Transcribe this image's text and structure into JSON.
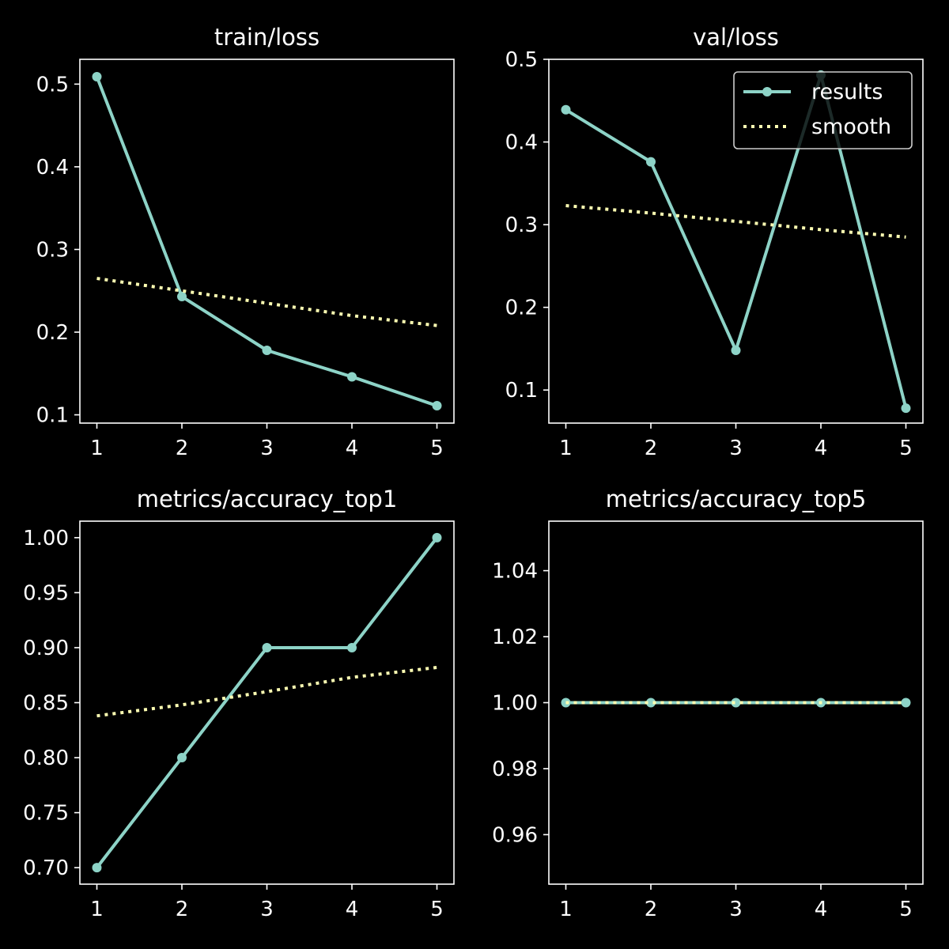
{
  "colors": {
    "background": "#000000",
    "axes": "#ffffff",
    "results": "#8dd3c7",
    "smooth": "#ffffb3",
    "legend_edge": "#cccccc"
  },
  "chart_data": [
    {
      "type": "line",
      "title": "train/loss",
      "x": [
        1,
        2,
        3,
        4,
        5
      ],
      "xlim": [
        0.8,
        5.2
      ],
      "ylim": [
        0.09,
        0.53
      ],
      "xticks": [
        1,
        2,
        3,
        4,
        5
      ],
      "yticks": [
        "0.1",
        "0.2",
        "0.3",
        "0.4",
        "0.5"
      ],
      "grid": false,
      "legend": null,
      "series": [
        {
          "key": "results",
          "style": "solid-marker",
          "values": [
            0.509,
            0.243,
            0.178,
            0.146,
            0.111
          ]
        },
        {
          "key": "smooth",
          "style": "dotted",
          "values": [
            0.265,
            0.25,
            0.235,
            0.22,
            0.208
          ]
        }
      ]
    },
    {
      "type": "line",
      "title": "val/loss",
      "x": [
        1,
        2,
        3,
        4,
        5
      ],
      "xlim": [
        0.8,
        5.2
      ],
      "ylim": [
        0.06,
        0.5
      ],
      "xticks": [
        1,
        2,
        3,
        4,
        5
      ],
      "yticks": [
        "0.1",
        "0.2",
        "0.3",
        "0.4",
        "0.5"
      ],
      "grid": false,
      "legend": "top-right",
      "series": [
        {
          "key": "results",
          "name": "results",
          "style": "solid-marker",
          "values": [
            0.439,
            0.376,
            0.148,
            0.481,
            0.078
          ]
        },
        {
          "key": "smooth",
          "name": "smooth",
          "style": "dotted",
          "values": [
            0.323,
            0.314,
            0.304,
            0.294,
            0.285
          ]
        }
      ]
    },
    {
      "type": "line",
      "title": "metrics/accuracy_top1",
      "x": [
        1,
        2,
        3,
        4,
        5
      ],
      "xlim": [
        0.8,
        5.2
      ],
      "ylim": [
        0.685,
        1.015
      ],
      "xticks": [
        1,
        2,
        3,
        4,
        5
      ],
      "yticks": [
        "0.70",
        "0.75",
        "0.80",
        "0.85",
        "0.90",
        "0.95",
        "1.00"
      ],
      "grid": false,
      "legend": null,
      "series": [
        {
          "key": "results",
          "style": "solid-marker",
          "values": [
            0.7,
            0.8,
            0.9,
            0.9,
            1.0
          ]
        },
        {
          "key": "smooth",
          "style": "dotted",
          "values": [
            0.838,
            0.848,
            0.86,
            0.873,
            0.882
          ]
        }
      ]
    },
    {
      "type": "line",
      "title": "metrics/accuracy_top5",
      "x": [
        1,
        2,
        3,
        4,
        5
      ],
      "xlim": [
        0.8,
        5.2
      ],
      "ylim": [
        0.945,
        1.055
      ],
      "xticks": [
        1,
        2,
        3,
        4,
        5
      ],
      "yticks": [
        "0.96",
        "0.98",
        "1.00",
        "1.02",
        "1.04"
      ],
      "grid": false,
      "legend": null,
      "series": [
        {
          "key": "results",
          "style": "solid-marker",
          "values": [
            1.0,
            1.0,
            1.0,
            1.0,
            1.0
          ]
        },
        {
          "key": "smooth",
          "style": "dotted",
          "values": [
            1.0,
            1.0,
            1.0,
            1.0,
            1.0
          ]
        }
      ]
    }
  ]
}
